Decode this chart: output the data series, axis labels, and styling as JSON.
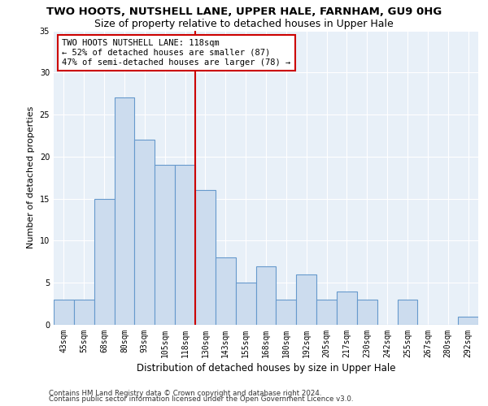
{
  "title": "TWO HOOTS, NUTSHELL LANE, UPPER HALE, FARNHAM, GU9 0HG",
  "subtitle": "Size of property relative to detached houses in Upper Hale",
  "xlabel": "Distribution of detached houses by size in Upper Hale",
  "ylabel": "Number of detached properties",
  "categories": [
    "43sqm",
    "55sqm",
    "68sqm",
    "80sqm",
    "93sqm",
    "105sqm",
    "118sqm",
    "130sqm",
    "143sqm",
    "155sqm",
    "168sqm",
    "180sqm",
    "192sqm",
    "205sqm",
    "217sqm",
    "230sqm",
    "242sqm",
    "255sqm",
    "267sqm",
    "280sqm",
    "292sqm"
  ],
  "values": [
    3,
    3,
    15,
    27,
    22,
    19,
    19,
    16,
    8,
    5,
    7,
    3,
    6,
    3,
    4,
    3,
    0,
    3,
    0,
    0,
    1
  ],
  "bar_color": "#ccdcee",
  "bar_edge_color": "#6699cc",
  "marker_index": 6,
  "annotation_text": "TWO HOOTS NUTSHELL LANE: 118sqm\n← 52% of detached houses are smaller (87)\n47% of semi-detached houses are larger (78) →",
  "annotation_box_color": "#ffffff",
  "annotation_box_edge": "#cc0000",
  "vline_color": "#cc0000",
  "ylim": [
    0,
    35
  ],
  "yticks": [
    0,
    5,
    10,
    15,
    20,
    25,
    30,
    35
  ],
  "bg_color": "#e8f0f8",
  "footer1": "Contains HM Land Registry data © Crown copyright and database right 2024.",
  "footer2": "Contains public sector information licensed under the Open Government Licence v3.0.",
  "title_fontsize": 9.5,
  "subtitle_fontsize": 9,
  "xlabel_fontsize": 8.5,
  "ylabel_fontsize": 8,
  "tick_fontsize": 7,
  "annotation_fontsize": 7.5
}
